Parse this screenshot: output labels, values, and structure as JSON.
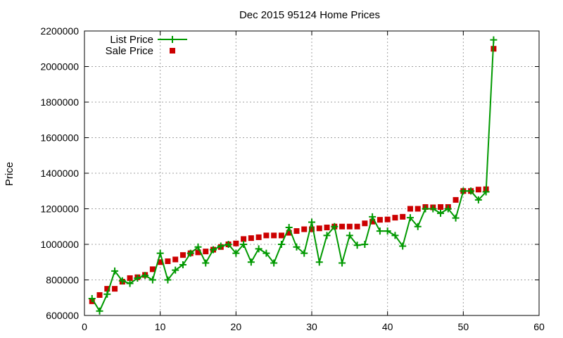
{
  "chart_data": {
    "type": "line",
    "title": "Dec 2015 95124 Home Prices",
    "xlabel": "",
    "ylabel": "Price",
    "xlim": [
      0,
      60
    ],
    "ylim": [
      600000,
      2200000
    ],
    "xticks": [
      0,
      10,
      20,
      30,
      40,
      50,
      60
    ],
    "yticks": [
      600000,
      800000,
      1000000,
      1200000,
      1400000,
      1600000,
      1800000,
      2000000,
      2200000
    ],
    "grid": true,
    "legend": "top-left",
    "x": [
      1,
      2,
      3,
      4,
      5,
      6,
      7,
      8,
      9,
      10,
      11,
      12,
      13,
      14,
      15,
      16,
      17,
      18,
      19,
      20,
      21,
      22,
      23,
      24,
      25,
      26,
      27,
      28,
      29,
      30,
      31,
      32,
      33,
      34,
      35,
      36,
      37,
      38,
      39,
      40,
      41,
      42,
      43,
      44,
      45,
      46,
      47,
      48,
      49,
      50,
      51,
      52,
      53,
      54
    ],
    "series": [
      {
        "name": "List Price",
        "style": "line+cross",
        "color": "#009900",
        "values": [
          695000,
          625000,
          720000,
          850000,
          795000,
          780000,
          810000,
          825000,
          800000,
          950000,
          800000,
          855000,
          885000,
          950000,
          985000,
          895000,
          970000,
          990000,
          1000000,
          950000,
          1000000,
          900000,
          975000,
          950000,
          895000,
          1000000,
          1095000,
          985000,
          950000,
          1125000,
          900000,
          1050000,
          1100000,
          895000,
          1050000,
          995000,
          1000000,
          1155000,
          1075000,
          1075000,
          1050000,
          990000,
          1150000,
          1100000,
          1200000,
          1200000,
          1175000,
          1200000,
          1148000,
          1300000,
          1300000,
          1250000,
          1295000,
          2150000
        ]
      },
      {
        "name": "Sale Price",
        "style": "square",
        "color": "#cc0000",
        "values": [
          680000,
          715000,
          750000,
          750000,
          790000,
          810000,
          815000,
          828000,
          860000,
          900000,
          905000,
          915000,
          940000,
          950000,
          955000,
          960000,
          970000,
          985000,
          1000000,
          1005000,
          1030000,
          1035000,
          1040000,
          1050000,
          1050000,
          1050000,
          1065000,
          1075000,
          1085000,
          1085000,
          1090000,
          1095000,
          1100000,
          1100000,
          1100000,
          1100000,
          1118000,
          1128000,
          1138000,
          1140000,
          1150000,
          1155000,
          1200000,
          1200000,
          1210000,
          1208000,
          1210000,
          1210000,
          1250000,
          1300000,
          1300000,
          1308000,
          1310000,
          2100000
        ]
      }
    ]
  }
}
